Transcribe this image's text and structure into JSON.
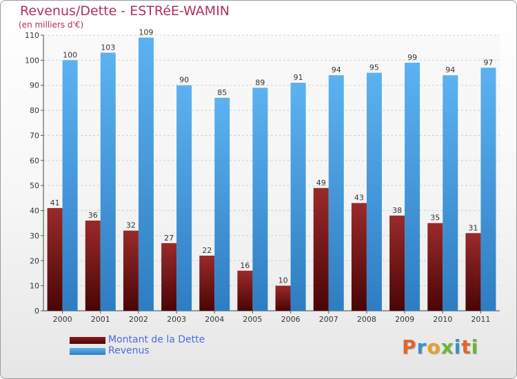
{
  "chart_data": {
    "type": "bar",
    "title": "Revenus/Dette - ESTRéE-WAMIN",
    "subtitle": "(en milliers d'€)",
    "categories": [
      "2000",
      "2001",
      "2002",
      "2003",
      "2004",
      "2005",
      "2006",
      "2007",
      "2008",
      "2009",
      "2010",
      "2011"
    ],
    "series": [
      {
        "name": "Montant de la Dette",
        "color": "#8b1a1a",
        "values": [
          41,
          36,
          32,
          27,
          22,
          16,
          10,
          49,
          43,
          38,
          35,
          31
        ]
      },
      {
        "name": "Revenus",
        "color": "#4a9fe0",
        "values": [
          100,
          103,
          109,
          90,
          85,
          89,
          91,
          94,
          95,
          99,
          94,
          97
        ]
      }
    ],
    "ylim": [
      0,
      110
    ],
    "yticks": [
      0,
      10,
      20,
      30,
      40,
      50,
      60,
      70,
      80,
      90,
      100,
      110
    ],
    "grid": true,
    "legend_position": "bottom-left"
  },
  "logo": {
    "letters": [
      "P",
      "r",
      "o",
      "x",
      "i",
      "t",
      "i"
    ]
  }
}
